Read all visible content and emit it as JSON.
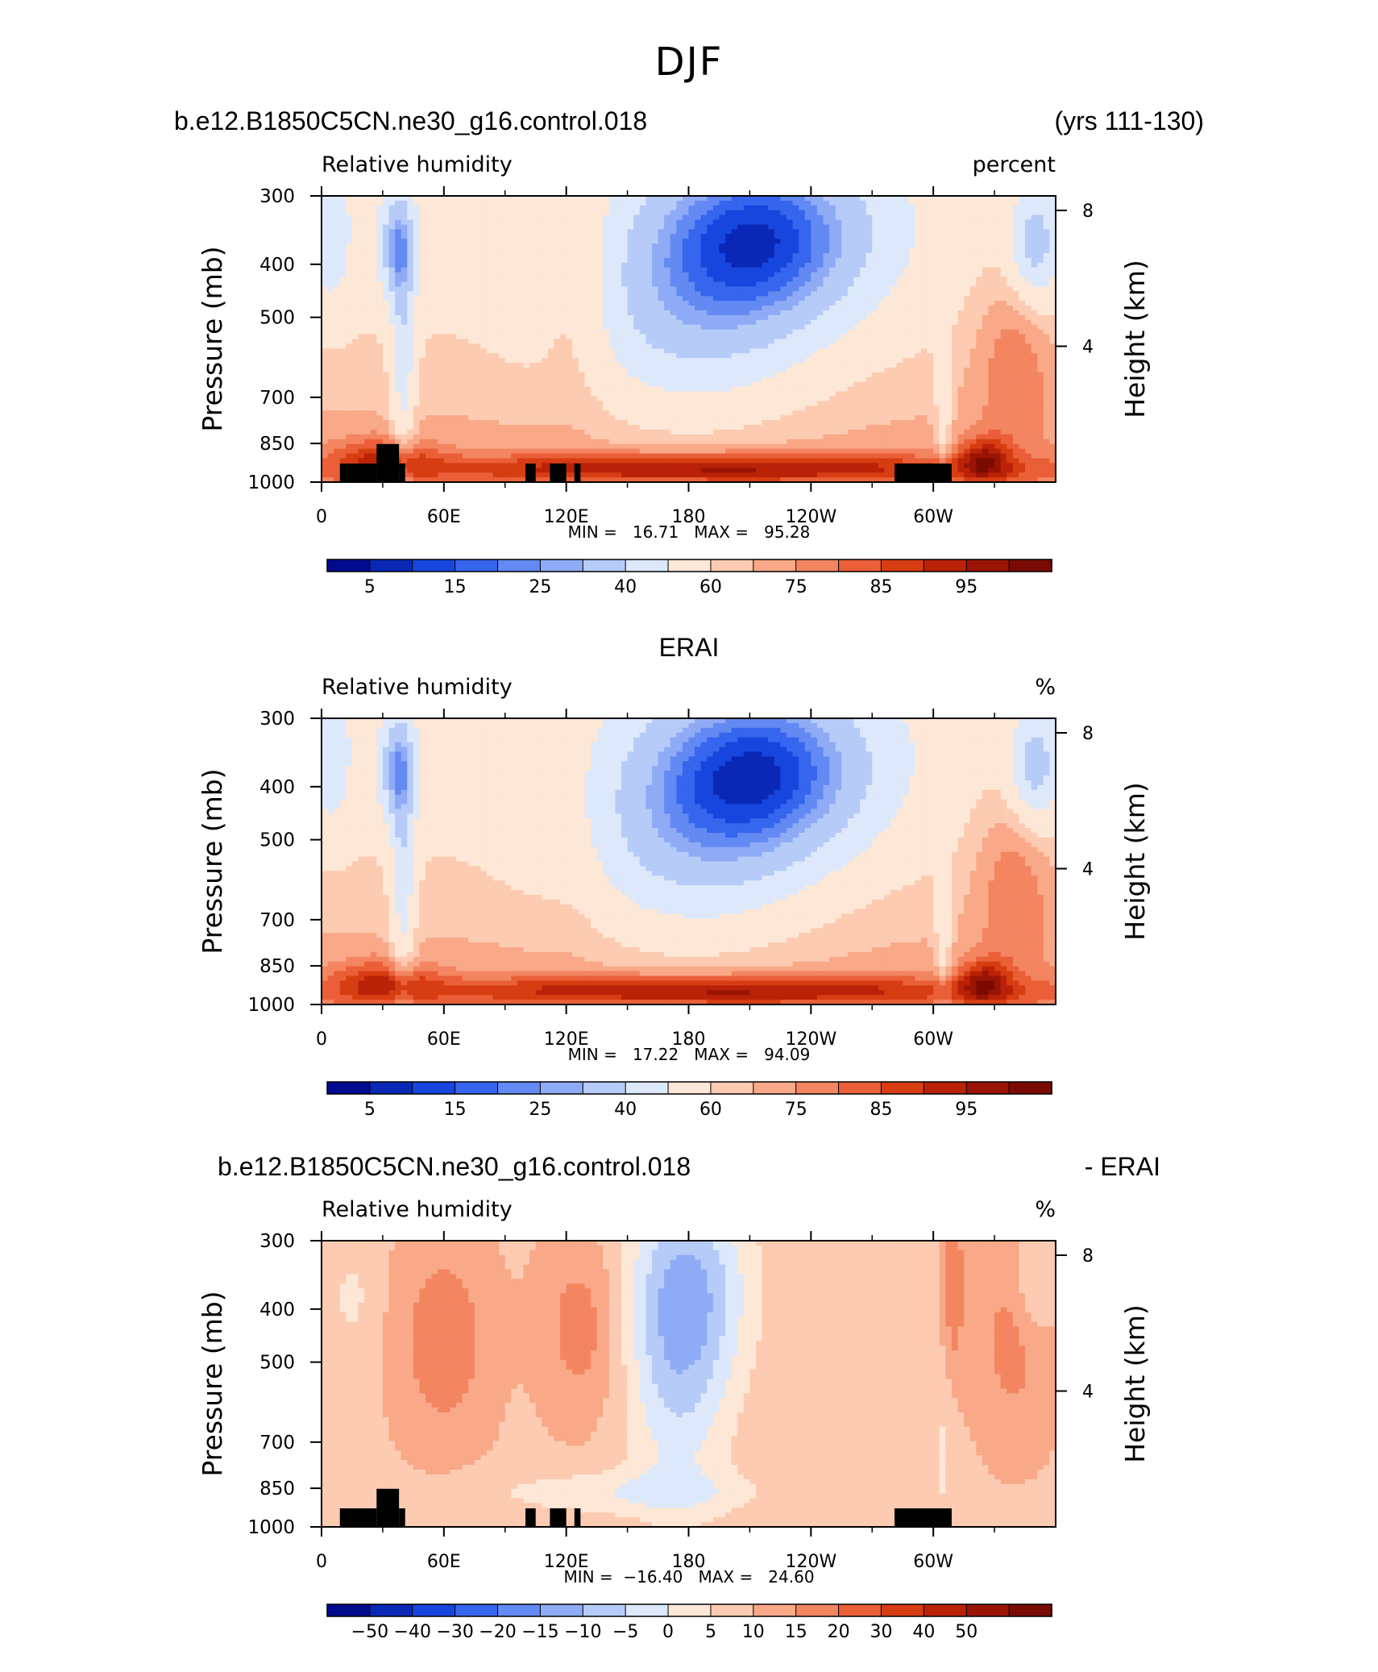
{
  "figure_title": "DJF",
  "chart_data": [
    {
      "type": "heatmap",
      "left_title": "b.e12.B1850C5CN.ne30_g16.control.018",
      "right_title": "(yrs 111-130)",
      "subtitle_left": "Relative humidity",
      "subtitle_right": "percent",
      "ylabel": "Pressure (mb)",
      "y2label": "Height (km)",
      "x_ticks": [
        "0",
        "60E",
        "120E",
        "180",
        "120W",
        "60W"
      ],
      "y_ticks": [
        "300",
        "400",
        "500",
        "700",
        "850",
        "1000"
      ],
      "y2_ticks": [
        "8",
        "4"
      ],
      "stats_text": "MIN =   16.71   MAX =   95.28",
      "min": 16.71,
      "max": 95.28,
      "colorbar": {
        "labels": [
          "5",
          "15",
          "25",
          "40",
          "60",
          "75",
          "85",
          "95"
        ],
        "colors": [
          "#000b8e",
          "#0a28b6",
          "#1646dd",
          "#3665ee",
          "#6389f3",
          "#8fabf6",
          "#b6cbf8",
          "#dde9fb",
          "#fde7d6",
          "#fccbb1",
          "#f9a888",
          "#f38561",
          "#ea5f37",
          "#d73d12",
          "#ba2208",
          "#9a1405",
          "#7a0b03"
        ]
      }
    },
    {
      "type": "heatmap",
      "center_title": "ERAI",
      "subtitle_left": "Relative humidity",
      "subtitle_right": "%",
      "ylabel": "Pressure (mb)",
      "y2label": "Height (km)",
      "x_ticks": [
        "0",
        "60E",
        "120E",
        "180",
        "120W",
        "60W"
      ],
      "y_ticks": [
        "300",
        "400",
        "500",
        "700",
        "850",
        "1000"
      ],
      "y2_ticks": [
        "8",
        "4"
      ],
      "stats_text": "MIN =   17.22   MAX =   94.09",
      "min": 17.22,
      "max": 94.09,
      "colorbar": {
        "labels": [
          "5",
          "15",
          "25",
          "40",
          "60",
          "75",
          "85",
          "95"
        ],
        "colors": [
          "#000b8e",
          "#0a28b6",
          "#1646dd",
          "#3665ee",
          "#6389f3",
          "#8fabf6",
          "#b6cbf8",
          "#dde9fb",
          "#fde7d6",
          "#fccbb1",
          "#f9a888",
          "#f38561",
          "#ea5f37",
          "#d73d12",
          "#ba2208",
          "#9a1405",
          "#7a0b03"
        ]
      }
    },
    {
      "type": "heatmap",
      "left_title": "b.e12.B1850C5CN.ne30_g16.control.018",
      "right_title": "- ERAI",
      "subtitle_left": "Relative humidity",
      "subtitle_right": "%",
      "ylabel": "Pressure (mb)",
      "y2label": "Height (km)",
      "x_ticks": [
        "0",
        "60E",
        "120E",
        "180",
        "120W",
        "60W"
      ],
      "y_ticks": [
        "300",
        "400",
        "500",
        "700",
        "850",
        "1000"
      ],
      "y2_ticks": [
        "8",
        "4"
      ],
      "stats_text": "MIN =  −16.40   MAX =   24.60",
      "min": -16.4,
      "max": 24.6,
      "colorbar": {
        "labels": [
          "−50",
          "−40",
          "−30",
          "−20",
          "−15",
          "−10",
          "−5",
          "0",
          "5",
          "10",
          "15",
          "20",
          "30",
          "40",
          "50"
        ],
        "colors": [
          "#000b8e",
          "#0a28b6",
          "#1646dd",
          "#3665ee",
          "#6389f3",
          "#8fabf6",
          "#b6cbf8",
          "#dde9fb",
          "#fde7d6",
          "#fccbb1",
          "#f9a888",
          "#f38561",
          "#ea5f37",
          "#d73d12",
          "#ba2208",
          "#9a1405",
          "#7a0b03"
        ]
      }
    }
  ]
}
